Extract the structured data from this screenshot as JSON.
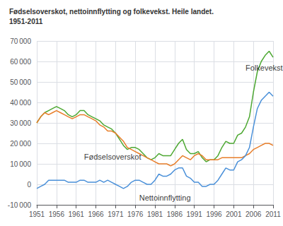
{
  "chart_data": {
    "type": "line",
    "title": "Fødselsoverskot, nettoinnflytting og folkevekst. Heile landet.",
    "subtitle": "1951-2011",
    "x": [
      1951,
      1952,
      1953,
      1954,
      1955,
      1956,
      1957,
      1958,
      1959,
      1960,
      1961,
      1962,
      1963,
      1964,
      1965,
      1966,
      1967,
      1968,
      1969,
      1970,
      1971,
      1972,
      1973,
      1974,
      1975,
      1976,
      1977,
      1978,
      1979,
      1980,
      1981,
      1982,
      1983,
      1984,
      1985,
      1986,
      1987,
      1988,
      1989,
      1990,
      1991,
      1992,
      1993,
      1994,
      1995,
      1996,
      1997,
      1998,
      1999,
      2000,
      2001,
      2002,
      2003,
      2004,
      2005,
      2006,
      2007,
      2008,
      2009,
      2010,
      2011
    ],
    "series": [
      {
        "color": "#4da832",
        "values": [
          30000,
          33000,
          35000,
          36000,
          37000,
          38000,
          37000,
          36000,
          34000,
          33000,
          34000,
          36000,
          36000,
          34000,
          33000,
          32000,
          31000,
          29000,
          28000,
          27000,
          25000,
          22000,
          19000,
          17000,
          18000,
          18000,
          17000,
          15000,
          13000,
          12000,
          13000,
          15000,
          14000,
          14000,
          14000,
          17000,
          20000,
          22000,
          17000,
          15000,
          15000,
          16000,
          13000,
          11000,
          12000,
          12000,
          14000,
          18000,
          21000,
          20000,
          20000,
          24000,
          25000,
          28000,
          33000,
          45000,
          55000,
          60000,
          63000,
          65000,
          62000
        ]
      },
      {
        "color": "#e87e2a",
        "values": [
          30000,
          33000,
          35000,
          34000,
          35000,
          36000,
          35000,
          34000,
          33000,
          32000,
          33000,
          34000,
          34000,
          33000,
          32000,
          31000,
          29000,
          28000,
          26000,
          26000,
          25000,
          23000,
          21000,
          18000,
          17000,
          16000,
          15000,
          14000,
          13000,
          12000,
          11000,
          10000,
          10000,
          10000,
          9000,
          10000,
          12000,
          14000,
          13000,
          12000,
          14000,
          15000,
          14000,
          12000,
          12000,
          12000,
          12000,
          13000,
          13000,
          13000,
          13000,
          13000,
          13000,
          14000,
          15000,
          17000,
          18000,
          19000,
          20000,
          20000,
          19000
        ]
      },
      {
        "color": "#4a90d9",
        "values": [
          -2000,
          -1000,
          0,
          2000,
          2000,
          2000,
          2000,
          2000,
          1000,
          1000,
          1000,
          2000,
          2000,
          1000,
          1000,
          1000,
          2000,
          1000,
          2000,
          1000,
          0,
          -1000,
          -2000,
          -1000,
          1000,
          2000,
          2000,
          1000,
          0,
          0,
          2000,
          5000,
          4000,
          4000,
          5000,
          7000,
          8000,
          8000,
          4000,
          3000,
          1000,
          1000,
          -1000,
          -1000,
          0,
          0,
          2000,
          5000,
          8000,
          7000,
          7000,
          11000,
          12000,
          14000,
          18000,
          28000,
          37000,
          41000,
          43000,
          45000,
          43000
        ]
      }
    ],
    "annotations": [
      {
        "text": "Folkevekst",
        "x": 2004,
        "y": 57000
      },
      {
        "text": "Fødselsoverskot",
        "x": 1963,
        "y": 13500
      },
      {
        "text": "Nettoinnflytting",
        "x": 1977,
        "y": -6500
      }
    ],
    "xlim": [
      1951,
      2011
    ],
    "xticks": [
      1951,
      1956,
      1961,
      1966,
      1971,
      1976,
      1981,
      1986,
      1991,
      1996,
      2001,
      2006,
      2011
    ],
    "ylim": [
      -10000,
      70000
    ],
    "yticks": [
      {
        "value": -10000,
        "label": "-10 000"
      },
      0,
      {
        "value": 10000,
        "label": "10 000"
      },
      {
        "value": 20000,
        "label": "20 000"
      },
      {
        "value": 30000,
        "label": "30 000"
      },
      {
        "value": 40000,
        "label": "40 000"
      },
      {
        "value": 50000,
        "label": "50 000"
      },
      {
        "value": 60000,
        "label": "60 000"
      },
      {
        "value": 70000,
        "label": "70 000"
      }
    ],
    "grid": true
  }
}
